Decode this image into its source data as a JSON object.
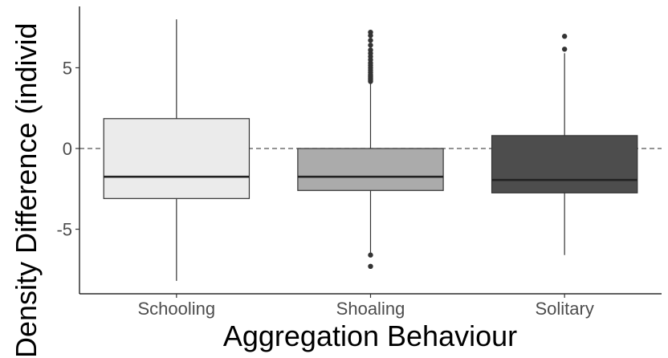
{
  "chart_data": {
    "type": "box",
    "xlabel": "Aggregation Behaviour",
    "ylabel": "Density Difference (individ",
    "ylim": [
      -9.0,
      8.8
    ],
    "y_ticks": [
      -5,
      0,
      5
    ],
    "reference_line": {
      "y": 0,
      "style": "dashed"
    },
    "grid": false,
    "categories": [
      "Schooling",
      "Shoaling",
      "Solitary"
    ],
    "boxes": [
      {
        "category": "Schooling",
        "fill": "#ebebeb",
        "min": -8.2,
        "q1": -3.1,
        "median": -1.75,
        "q3": 1.85,
        "max": 8.0,
        "outliers": []
      },
      {
        "category": "Shoaling",
        "fill": "#ababab",
        "min": -6.6,
        "q1": -2.6,
        "median": -1.75,
        "q3": 0.0,
        "max": 4.1,
        "outliers": [
          4.15,
          4.25,
          4.35,
          4.45,
          4.55,
          4.7,
          4.85,
          5.0,
          5.15,
          5.3,
          5.5,
          5.7,
          5.9,
          6.1,
          6.4,
          6.7,
          7.0,
          7.2,
          -6.6,
          -7.3
        ]
      },
      {
        "category": "Solitary",
        "fill": "#4d4d4d",
        "min": -6.6,
        "q1": -2.75,
        "median": -1.95,
        "q3": 0.8,
        "max": 5.9,
        "outliers": [
          6.15,
          6.95
        ]
      }
    ]
  }
}
